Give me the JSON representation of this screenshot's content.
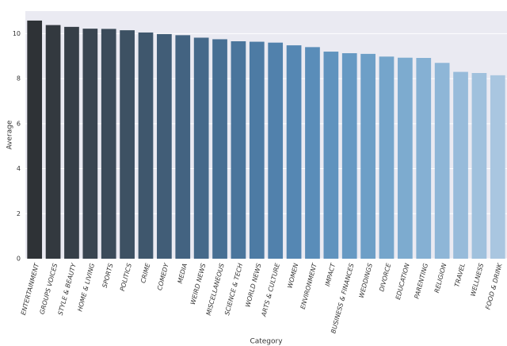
{
  "chart_data": {
    "type": "bar",
    "x_label": "Category",
    "y_label": "Average",
    "categories": [
      "ENTERTAINMENT",
      "GROUPS VOICES",
      "STYLE & BEAUTY",
      "HOME & LIVING",
      "SPORTS",
      "POLITICS",
      "CRIME",
      "COMEDY",
      "MEDIA",
      "WEIRD NEWS",
      "MISCELLANEOUS",
      "SCIENCE & TECH",
      "WORLD NEWS",
      "ARTS & CULTURE",
      "WOMEN",
      "ENVIRONMENT",
      "IMPACT",
      "BUSINESS & FINANCES",
      "WEDDINGS",
      "DIVORCE",
      "EDUCATION",
      "PARENTING",
      "RELIGION",
      "TRAVEL",
      "WELLNESS",
      "FOOD & DRINK"
    ],
    "values": [
      10.58,
      10.38,
      10.3,
      10.22,
      10.21,
      10.15,
      10.05,
      9.98,
      9.93,
      9.82,
      9.75,
      9.66,
      9.64,
      9.6,
      9.48,
      9.4,
      9.2,
      9.13,
      9.1,
      8.98,
      8.93,
      8.92,
      8.7,
      8.3,
      8.25,
      8.15
    ],
    "colors": [
      "#2e3236",
      "#33393f",
      "#363f48",
      "#394551",
      "#3b4b5a",
      "#3d5163",
      "#3f576d",
      "#415d77",
      "#436381",
      "#45698a",
      "#476f93",
      "#4a759c",
      "#4d7ba4",
      "#5181ac",
      "#5587b3",
      "#5a8db9",
      "#6093be",
      "#6699c3",
      "#6d9fc7",
      "#75a5cb",
      "#7dabcf",
      "#85b0d3",
      "#8eb6d7",
      "#97bbda",
      "#a0c1dd",
      "#a9c6e0"
    ],
    "ylim": [
      0,
      11
    ],
    "yticks": [
      0,
      2,
      4,
      6,
      8,
      10
    ],
    "grid": true,
    "background": "#eaeaf2"
  }
}
